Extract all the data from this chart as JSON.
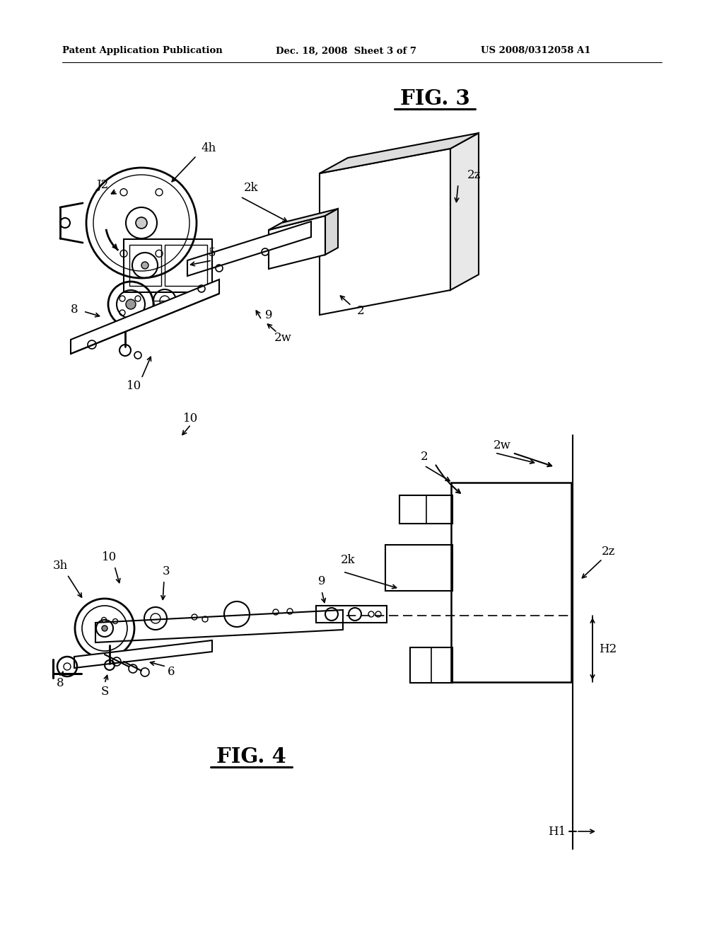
{
  "bg_color": "#ffffff",
  "header_left": "Patent Application Publication",
  "header_mid": "Dec. 18, 2008  Sheet 3 of 7",
  "header_right": "US 2008/0312058 A1",
  "fig3_title": "FIG. 3",
  "fig4_title": "FIG. 4",
  "line_color": "#000000",
  "text_color": "#000000"
}
